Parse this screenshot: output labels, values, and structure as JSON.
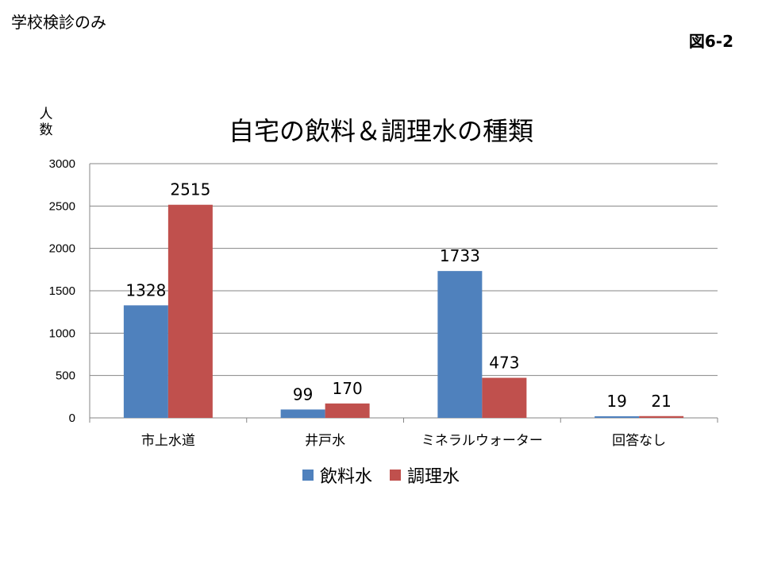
{
  "header": {
    "note": "学校検診のみ",
    "figure_label": "図6-2"
  },
  "chart_data": {
    "type": "bar",
    "title": "自宅の飲料＆調理水の種類",
    "ylabel": "人数",
    "xlabel": "",
    "ylim": [
      0,
      3000
    ],
    "yticks": [
      0,
      500,
      1000,
      1500,
      2000,
      2500,
      3000
    ],
    "categories": [
      "市上水道",
      "井戸水",
      "ミネラルウォーター",
      "回答なし"
    ],
    "series": [
      {
        "name": "飲料水",
        "color": "#4F81BD",
        "values": [
          1328,
          99,
          1733,
          19
        ]
      },
      {
        "name": "調理水",
        "color": "#C0504D",
        "values": [
          2515,
          170,
          473,
          21
        ]
      }
    ],
    "grid": true,
    "legend_position": "bottom"
  }
}
